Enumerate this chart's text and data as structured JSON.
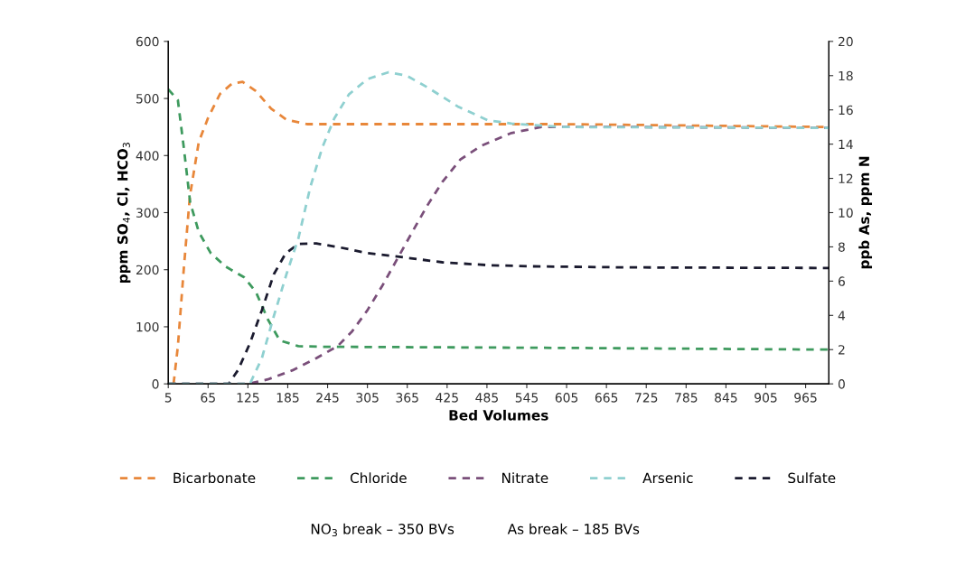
{
  "chart_data": {
    "type": "line",
    "xlabel": "Bed Volumes",
    "ylabel": "ppm SO$_{4}$, Cl, HCO$_{3}$",
    "y2label": "ppb As, ppm N",
    "xlim": [
      5,
      1000
    ],
    "xticks": [
      5,
      65,
      125,
      185,
      245,
      305,
      365,
      425,
      485,
      545,
      605,
      665,
      725,
      785,
      845,
      905,
      965
    ],
    "ylim": [
      0,
      600
    ],
    "yticks": [
      0,
      100,
      200,
      300,
      400,
      500,
      600
    ],
    "y2lim": [
      0,
      20
    ],
    "y2ticks": [
      0,
      2,
      4,
      6,
      8,
      10,
      12,
      14,
      16,
      18,
      20
    ],
    "grid": false,
    "legend": "bottom",
    "line_style": "dashed",
    "marker": "none",
    "series": [
      {
        "name": "Bicarbonate",
        "color": "#e8873a",
        "x": [
          13,
          19.5,
          28.5,
          37.6,
          51,
          65,
          83,
          101,
          117,
          137,
          160,
          183,
          214,
          300,
          600,
          1000
        ],
        "values": [
          0,
          66,
          203,
          329,
          424,
          466,
          508,
          526,
          529,
          513,
          482,
          463,
          455,
          455,
          455,
          450
        ]
      },
      {
        "name": "Chloride",
        "color": "#3e9a5e",
        "x": [
          5,
          19.5,
          28.5,
          38,
          51,
          69,
          92,
          119,
          137,
          155,
          173,
          201,
          237,
          600,
          1000
        ],
        "values": [
          516,
          497,
          413,
          318,
          266,
          229,
          205,
          187,
          161,
          113,
          76,
          66,
          65,
          63,
          60
        ]
      },
      {
        "name": "Nitrate",
        "color": "#7a4f7a",
        "axis": "y2",
        "x": [
          5,
          125,
          155,
          192,
          228,
          260,
          282,
          305,
          327,
          350,
          373,
          395,
          418,
          445,
          476,
          522,
          567,
          700,
          1000
        ],
        "values": [
          0,
          0,
          0.26,
          0.79,
          1.5,
          2.2,
          3.07,
          4.3,
          5.7,
          7.3,
          8.9,
          10.4,
          11.8,
          13.1,
          13.9,
          14.65,
          15.0,
          15.0,
          14.95
        ]
      },
      {
        "name": "Arsenic",
        "color": "#8fd0d0",
        "axis": "y2",
        "x": [
          5,
          128,
          146,
          164,
          183,
          201,
          219,
          237,
          255,
          277,
          305,
          337,
          364,
          396,
          441,
          486,
          522,
          600,
          1000
        ],
        "values": [
          0,
          0,
          1.5,
          3.95,
          6.4,
          8.5,
          11.5,
          13.8,
          15.5,
          16.9,
          17.8,
          18.2,
          18.0,
          17.3,
          16.2,
          15.4,
          15.2,
          15.0,
          14.95
        ]
      },
      {
        "name": "Sulfate",
        "color": "#1a1a2e",
        "x": [
          5,
          96,
          110,
          128,
          146,
          164,
          182,
          201,
          228,
          264,
          305,
          350,
          418,
          486,
          545,
          700,
          1000
        ],
        "values": [
          0,
          0,
          24,
          71,
          129,
          192,
          229,
          245,
          246,
          239,
          229,
          223,
          213,
          208,
          206,
          204,
          203
        ]
      }
    ],
    "annotations": [
      "NO$_{3}$ break – 350 BVs",
      "As break – 185 BVs"
    ]
  }
}
